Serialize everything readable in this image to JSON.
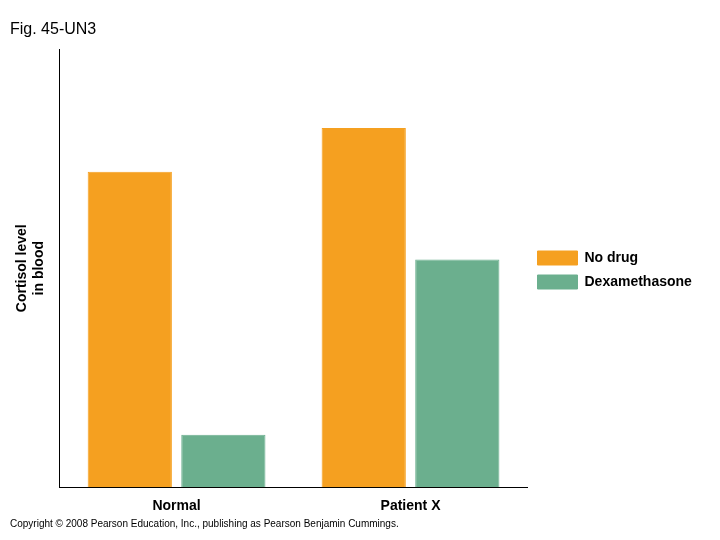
{
  "chart_data": {
    "type": "bar",
    "title": "Fig. 45-UN3",
    "ylabel": "Cortisol level\nin blood",
    "categories": [
      "Normal",
      "Patient X"
    ],
    "series": [
      {
        "name": "No drug",
        "color": "#F5A020",
        "values": [
          0.72,
          0.82
        ]
      },
      {
        "name": "Dexamethasone",
        "color": "#6BAF8E",
        "values": [
          0.12,
          0.52
        ]
      }
    ],
    "ylim": [
      0,
      1.0
    ],
    "grid": false,
    "legend": "right",
    "tick_labels": "x",
    "annotations": [
      "Copyright © 2008 Pearson Education, Inc., publishing as Pearson Benjamin Cummings."
    ]
  }
}
